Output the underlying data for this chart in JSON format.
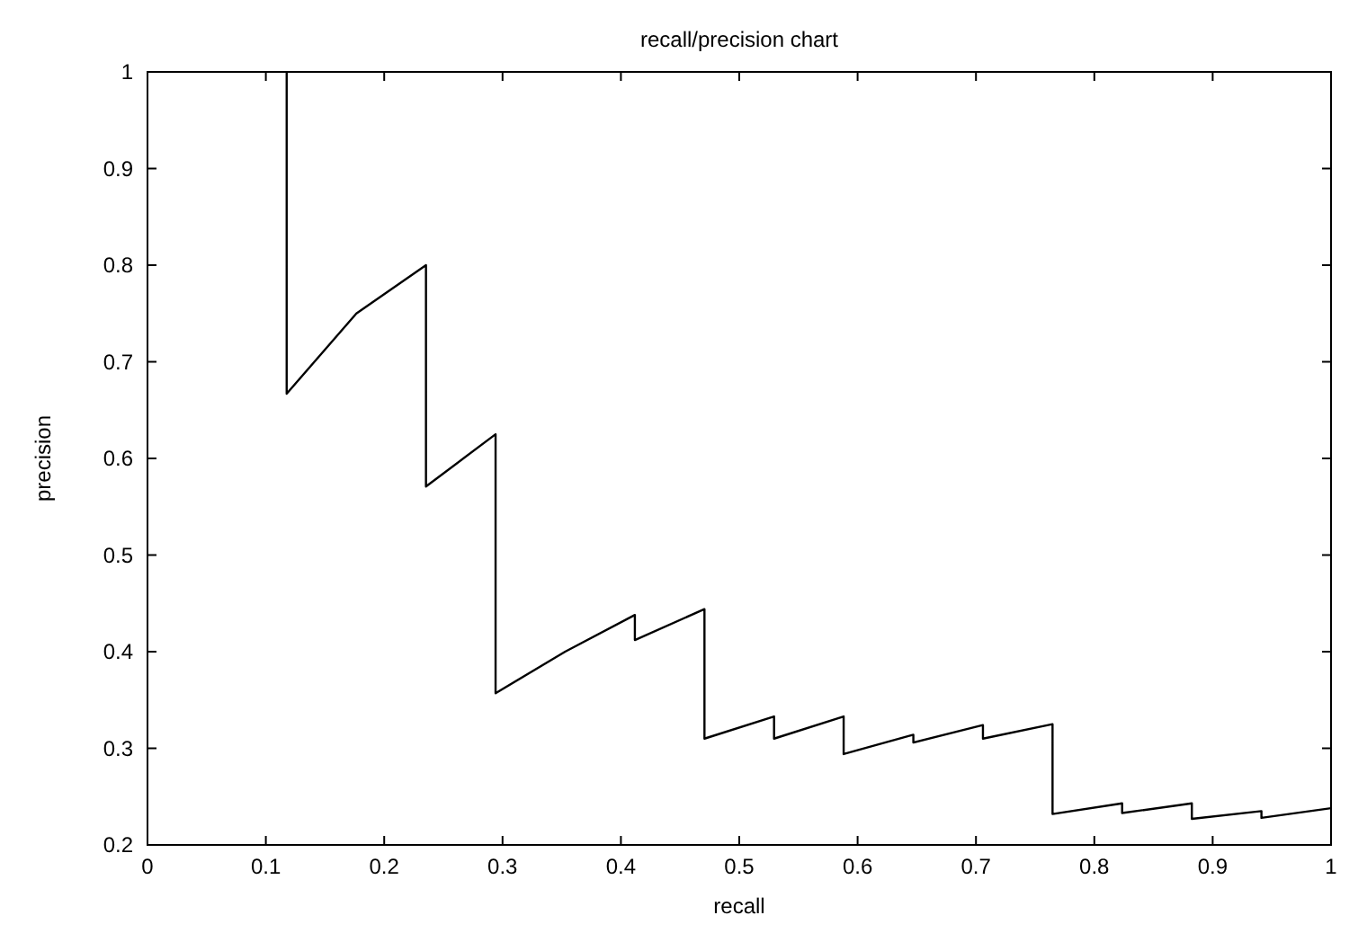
{
  "chart_data": {
    "type": "line",
    "title": "recall/precision chart",
    "xlabel": "recall",
    "ylabel": "precision",
    "x": [
      0.1176,
      0.1176,
      0.1765,
      0.2353,
      0.2353,
      0.2941,
      0.2941,
      0.3529,
      0.4118,
      0.4118,
      0.4706,
      0.4706,
      0.5294,
      0.5294,
      0.5882,
      0.5882,
      0.6471,
      0.6471,
      0.7059,
      0.7059,
      0.7647,
      0.7647,
      0.8235,
      0.8235,
      0.8824,
      0.8824,
      0.9412,
      0.9412,
      1
    ],
    "series": [
      {
        "color": "#000000",
        "values": [
          1,
          0.667,
          0.75,
          0.8,
          0.571,
          0.625,
          0.357,
          0.4,
          0.438,
          0.412,
          0.444,
          0.31,
          0.333,
          0.31,
          0.333,
          0.294,
          0.314,
          0.306,
          0.324,
          0.31,
          0.325,
          0.232,
          0.243,
          0.233,
          0.243,
          0.227,
          0.235,
          0.228,
          0.238
        ]
      }
    ],
    "xlim": [
      0,
      1
    ],
    "ylim": [
      0.2,
      1
    ],
    "xticks": [
      0,
      0.1,
      0.2,
      0.3,
      0.4,
      0.5,
      0.6,
      0.7,
      0.8,
      0.9,
      1
    ],
    "yticks": [
      0.2,
      0.3,
      0.4,
      0.5,
      0.6,
      0.7,
      0.8,
      0.9,
      1
    ],
    "grid": false,
    "marker": "none",
    "line_style": "solid"
  }
}
